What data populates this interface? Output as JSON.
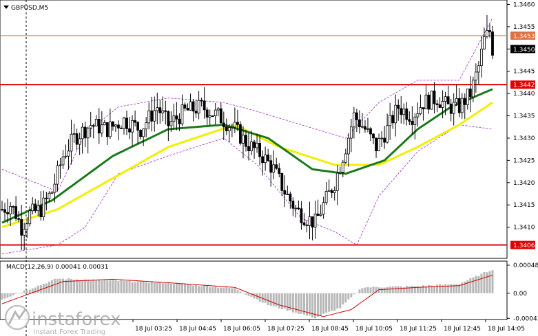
{
  "header": {
    "symbol": "GBPUSD,M5",
    "symbol_icon": "triangle-down-icon"
  },
  "watermark": {
    "brand": "instaforex",
    "tagline": "Instant Forex Trading"
  },
  "colors": {
    "candle": "#000000",
    "ma_green": "#1a7a1a",
    "ma_yellow": "#f0f000",
    "bollinger": "#a020c8",
    "level_line": "#e00000",
    "price_line": "#e07040",
    "macd_hist": "#b8b8b8",
    "macd_signal": "#d00000",
    "crosshair": "#000000"
  },
  "chart_data": [
    {
      "type": "candlestick",
      "title": "GBPUSD,M5",
      "ylim": [
        1.3403,
        1.3461
      ],
      "y_ticks": [
        "1.3460",
        "1.3455",
        "1.3450",
        "1.3445",
        "1.3440",
        "1.3435",
        "1.3430",
        "1.3425",
        "1.3420",
        "1.3415",
        "1.3410"
      ],
      "x_ticks": [
        "18 Jul 03:25",
        "18 Jul 04:45",
        "18 Jul 06:05",
        "18 Jul 07:25",
        "18 Jul 08:45",
        "18 Jul 10:05",
        "18 Jul 11:25",
        "18 Jul 12:45",
        "18 Jul 14:05"
      ],
      "levels": [
        {
          "label": "1.3453",
          "value": 1.3453,
          "style": "price"
        },
        {
          "label": "1.3450",
          "value": 1.345,
          "style": "current"
        },
        {
          "label": "1.3442",
          "value": 1.3442,
          "style": "level"
        },
        {
          "label": "1.3406",
          "value": 1.3406,
          "style": "level"
        }
      ],
      "close_anchors": [
        [
          0,
          1.3414
        ],
        [
          3,
          1.3415
        ],
        [
          5,
          1.3413
        ],
        [
          7,
          1.341
        ],
        [
          10,
          1.3413
        ],
        [
          14,
          1.3414
        ],
        [
          18,
          1.3418
        ],
        [
          22,
          1.3426
        ],
        [
          26,
          1.343
        ],
        [
          32,
          1.3433
        ],
        [
          38,
          1.3432
        ],
        [
          44,
          1.3434
        ],
        [
          50,
          1.3432
        ],
        [
          56,
          1.3437
        ],
        [
          60,
          1.3433
        ],
        [
          66,
          1.3436
        ],
        [
          72,
          1.3437
        ],
        [
          78,
          1.3435
        ],
        [
          84,
          1.3432
        ],
        [
          88,
          1.3429
        ],
        [
          94,
          1.3426
        ],
        [
          98,
          1.3423
        ],
        [
          102,
          1.3418
        ],
        [
          106,
          1.3414
        ],
        [
          110,
          1.3412
        ],
        [
          113,
          1.3411
        ],
        [
          116,
          1.3415
        ],
        [
          120,
          1.342
        ],
        [
          124,
          1.3428
        ],
        [
          127,
          1.3435
        ],
        [
          131,
          1.3432
        ],
        [
          135,
          1.3428
        ],
        [
          139,
          1.3432
        ],
        [
          143,
          1.3437
        ],
        [
          148,
          1.3435
        ],
        [
          152,
          1.3438
        ],
        [
          157,
          1.3439
        ],
        [
          161,
          1.3437
        ],
        [
          165,
          1.3437
        ],
        [
          169,
          1.344
        ],
        [
          172,
          1.3446
        ],
        [
          174,
          1.3452
        ],
        [
          176,
          1.3454
        ],
        [
          177,
          1.345
        ]
      ],
      "ma_slow_yellow": [
        [
          0,
          1.341
        ],
        [
          20,
          1.3414
        ],
        [
          60,
          1.3428
        ],
        [
          84,
          1.3433
        ],
        [
          100,
          1.3428
        ],
        [
          120,
          1.3424
        ],
        [
          136,
          1.3424
        ],
        [
          150,
          1.3428
        ],
        [
          165,
          1.3433
        ],
        [
          177,
          1.3438
        ]
      ],
      "ma_fast_green": [
        [
          0,
          1.3411
        ],
        [
          18,
          1.3416
        ],
        [
          40,
          1.3426
        ],
        [
          60,
          1.3432
        ],
        [
          80,
          1.3433
        ],
        [
          96,
          1.343
        ],
        [
          112,
          1.3423
        ],
        [
          124,
          1.3422
        ],
        [
          138,
          1.3425
        ],
        [
          150,
          1.3432
        ],
        [
          162,
          1.3437
        ],
        [
          177,
          1.3441
        ]
      ],
      "bollinger_upper": [
        [
          0,
          1.3423
        ],
        [
          20,
          1.3418
        ],
        [
          30,
          1.3431
        ],
        [
          42,
          1.3437
        ],
        [
          60,
          1.3439
        ],
        [
          80,
          1.3438
        ],
        [
          92,
          1.3436
        ],
        [
          108,
          1.3433
        ],
        [
          124,
          1.343
        ],
        [
          136,
          1.3438
        ],
        [
          150,
          1.3443
        ],
        [
          165,
          1.3443
        ],
        [
          177,
          1.3457
        ]
      ],
      "bollinger_lower": [
        [
          0,
          1.3404
        ],
        [
          20,
          1.3406
        ],
        [
          30,
          1.341
        ],
        [
          42,
          1.3422
        ],
        [
          60,
          1.3426
        ],
        [
          80,
          1.343
        ],
        [
          92,
          1.3424
        ],
        [
          108,
          1.3412
        ],
        [
          120,
          1.3409
        ],
        [
          128,
          1.3406
        ],
        [
          136,
          1.3417
        ],
        [
          150,
          1.3427
        ],
        [
          165,
          1.3433
        ],
        [
          177,
          1.3432
        ]
      ]
    },
    {
      "type": "macd",
      "title": "MACD(12,26,9) 0.00041 0.00031",
      "params": "12,26,9",
      "macd": 0.00041,
      "signal": 0.00031,
      "ylim": [
        -0.00045,
        0.00055
      ],
      "y_ticks": [
        "0.00048",
        "0.00",
        "-0.00043"
      ],
      "hist_anchors": [
        [
          0,
          -0.0001
        ],
        [
          20,
          0.00025
        ],
        [
          60,
          0.00018
        ],
        [
          84,
          8e-05
        ],
        [
          96,
          -0.0002
        ],
        [
          113,
          -0.00042
        ],
        [
          122,
          -0.00025
        ],
        [
          130,
          0.0001
        ],
        [
          150,
          0.00012
        ],
        [
          165,
          0.00016
        ],
        [
          177,
          0.00041
        ]
      ],
      "signal_anchors": [
        [
          0,
          -0.00018
        ],
        [
          22,
          0.0002
        ],
        [
          40,
          0.00024
        ],
        [
          60,
          0.00018
        ],
        [
          84,
          0.0001
        ],
        [
          100,
          -0.0002
        ],
        [
          116,
          -0.0004
        ],
        [
          126,
          -0.00028
        ],
        [
          136,
          6e-05
        ],
        [
          150,
          0.0001
        ],
        [
          165,
          0.00013
        ],
        [
          177,
          0.00031
        ]
      ]
    }
  ]
}
